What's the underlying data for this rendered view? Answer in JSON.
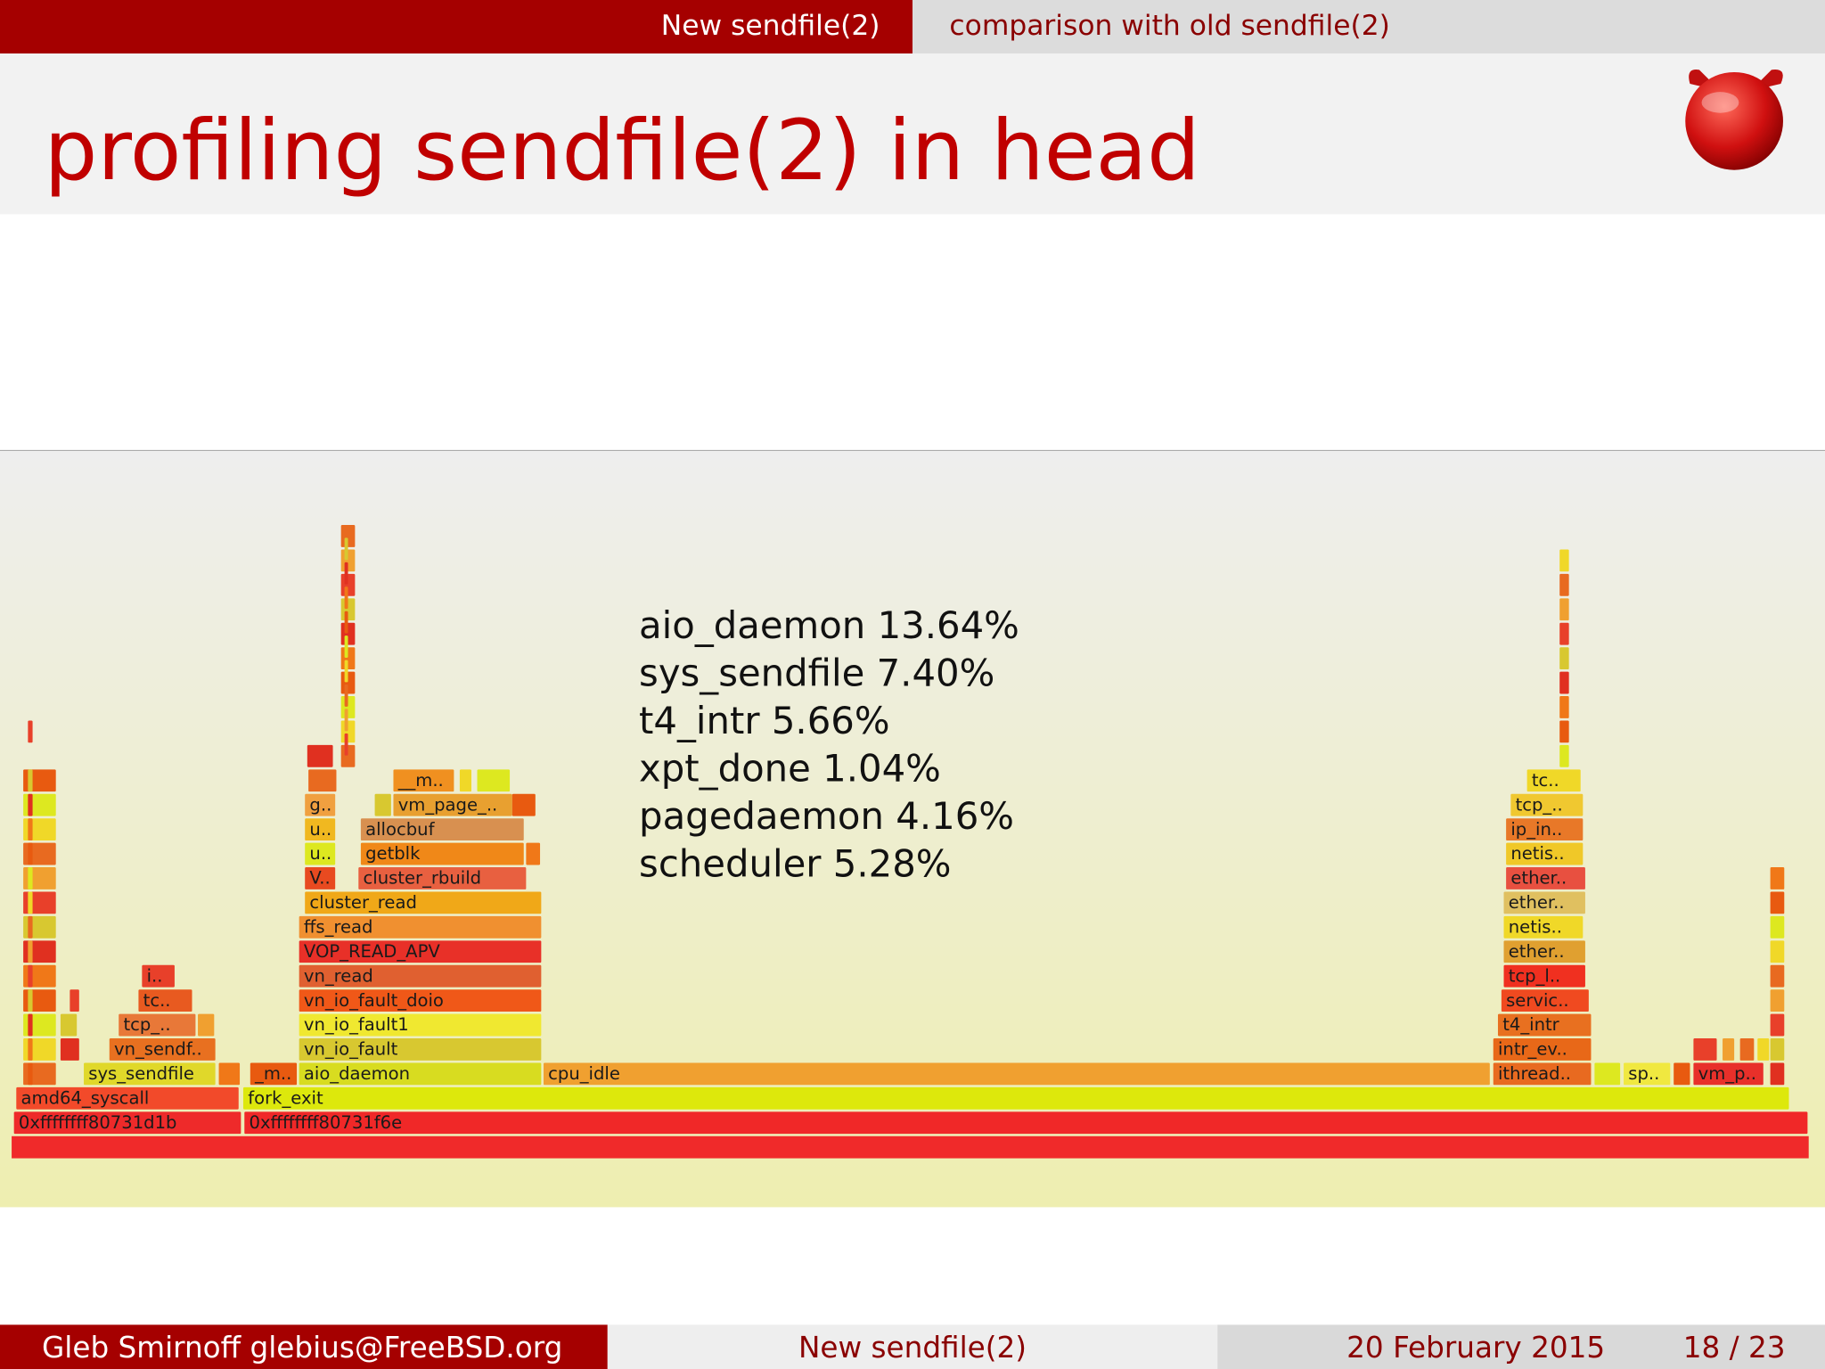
{
  "header": {
    "tabs": [
      "New sendfile(2)",
      "comparison with old sendfile(2)"
    ]
  },
  "title": "profiling sendfile(2) in head",
  "flamegraph": {
    "frames": [
      "0xffffffff80731d1b",
      "0xffffffff80731f6e",
      "amd64_syscall",
      "fork_exit",
      "sys_sendfile",
      "_m..",
      "aio_daemon",
      "cpu_idle",
      "ithread..",
      "sp..",
      "vm_p..",
      "vn_sendf..",
      "vn_io_fault",
      "intr_ev..",
      "tcp_..",
      "vn_io_fault1",
      "t4_intr",
      "tc..",
      "vn_io_fault_doio",
      "servic..",
      "i..",
      "vn_read",
      "tcp_l..",
      "VOP_READ_APV",
      "ether..",
      "ffs_read",
      "netis..",
      "cluster_read",
      "ether..",
      "V..",
      "cluster_rbuild",
      "ether..",
      "u..",
      "getblk",
      "netis..",
      "u..",
      "allocbuf",
      "ip_in..",
      "g..",
      "vm_page_..",
      "tcp_..",
      "__m..",
      "tc.."
    ],
    "stats": [
      "aio_daemon 13.64%",
      "sys_sendfile 7.40%",
      "t4_intr 5.66%",
      "xpt_done 1.04%",
      "pagedaemon 4.16%",
      "scheduler 5.28%"
    ]
  },
  "footer": {
    "author": "Gleb Smirnoff glebius@FreeBSD.org",
    "talk": "New sendfile(2)",
    "date": "20 February 2015",
    "page": "18 / 23"
  }
}
